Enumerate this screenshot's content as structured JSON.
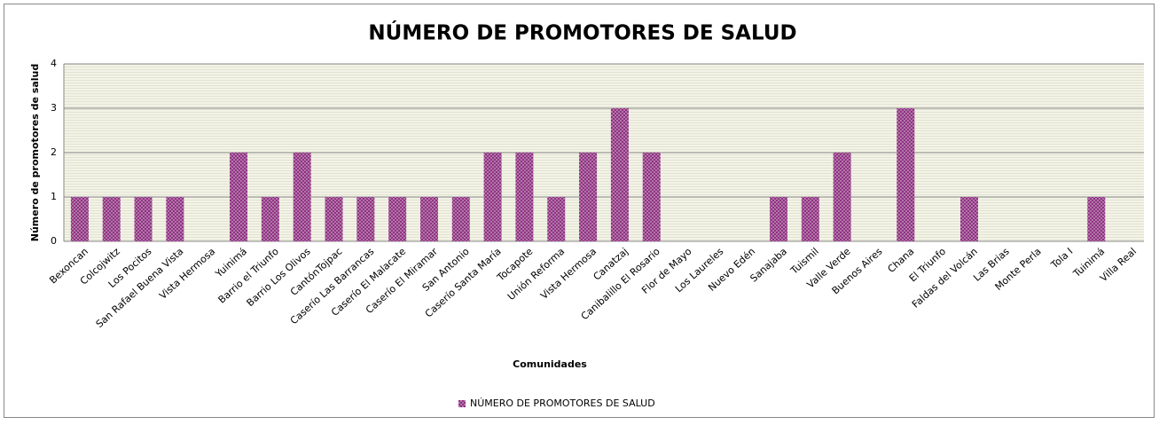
{
  "chart_data": {
    "type": "bar",
    "title": "NÚMERO DE PROMOTORES DE SALUD",
    "x_label": "Comunidades",
    "y_label": "Número de promotores de salud",
    "categories": [
      "Bexoncan",
      "Colcojwitz",
      "Los Pocitos",
      "San Rafael Buena Vista",
      "Vista Hermosa",
      "Yuinimá",
      "Barrio el Triunfo",
      "Barrio Los Olivos",
      "CantónTojpac",
      "Caserío Las Barrancas",
      "Caserío El Malacate",
      "Caserío El Miramar",
      "San Antonio",
      "Caserío Santa María",
      "Tocapote",
      "Unión Reforma",
      "Vista Hermosa",
      "Canatzaj",
      "Canibalillo El Rosario",
      "Flor de Mayo",
      "Los Laureles",
      "Nuevo Edén",
      "Sanajaba",
      "Tuismil",
      "Valle Verde",
      "Buenos Aires",
      "Chana",
      "El Triunfo",
      "Faldas del Volcán",
      "Las Brias",
      "Monte Perla",
      "Tola I",
      "Tuinimá",
      "Villa Real"
    ],
    "series": [
      {
        "name": "NÚMERO DE PROMOTORES DE SALUD",
        "color": "#8b2a7d",
        "values": [
          1,
          1,
          1,
          1,
          0,
          2,
          1,
          2,
          1,
          1,
          1,
          1,
          1,
          2,
          2,
          1,
          2,
          3,
          2,
          0,
          0,
          0,
          1,
          1,
          2,
          0,
          3,
          0,
          1,
          0,
          0,
          0,
          1,
          0
        ]
      }
    ],
    "ylim": [
      0,
      4
    ],
    "yticks": [
      0,
      1,
      2,
      3,
      4
    ],
    "grid": true,
    "legend": "bottom"
  }
}
